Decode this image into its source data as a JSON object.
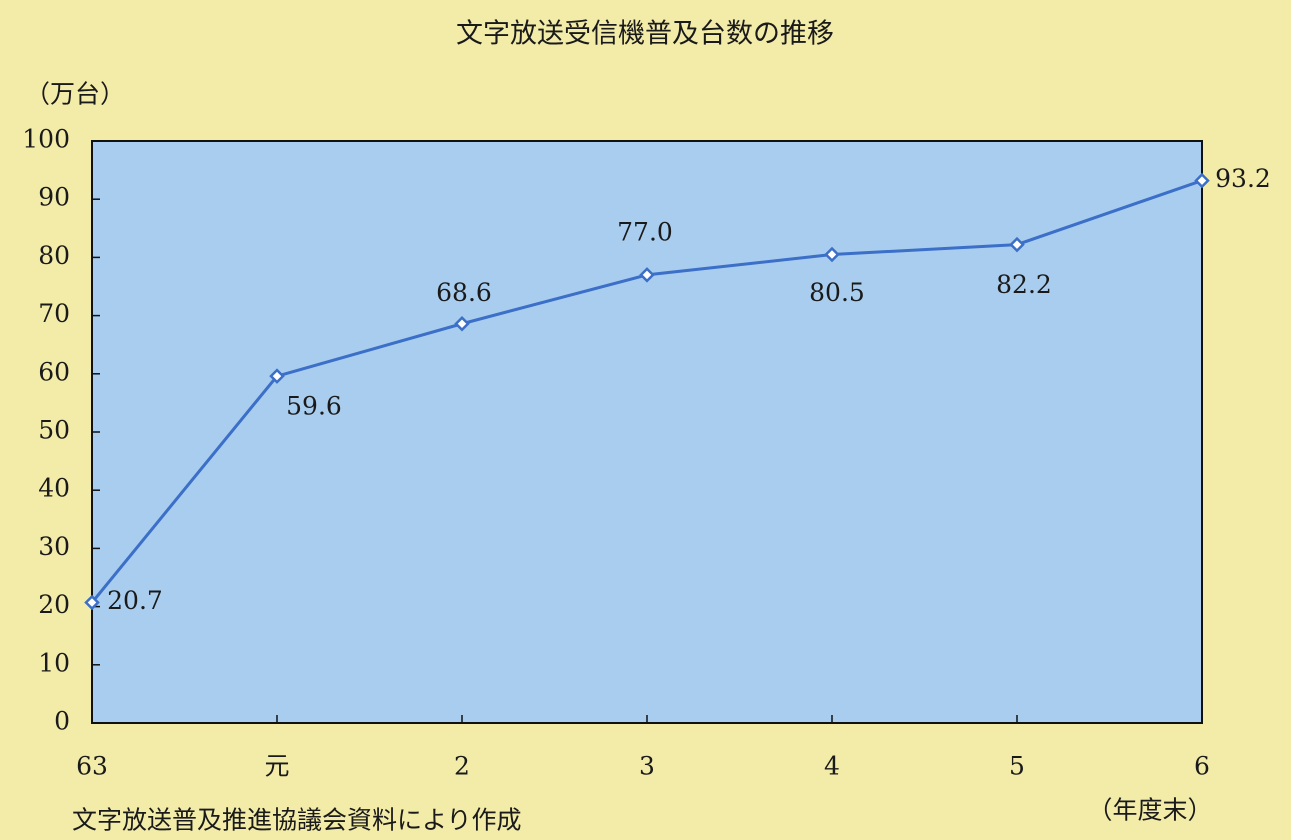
{
  "chart_data": {
    "type": "line",
    "title": "文字放送受信機普及台数の推移",
    "y_label": "（万台）",
    "x_label": "（年度末）",
    "source": "文字放送普及推進協議会資料により作成",
    "categories": [
      "63",
      "元",
      "2",
      "3",
      "4",
      "5",
      "6"
    ],
    "values": [
      20.7,
      59.6,
      68.6,
      77.0,
      80.5,
      82.2,
      93.2
    ],
    "value_labels": [
      "20.7",
      "59.6",
      "68.6",
      "77.0",
      "80.5",
      "82.2",
      "93.2"
    ],
    "color": "#3b6fc8",
    "ylim": [
      0,
      100
    ],
    "yticks": [
      0,
      10,
      20,
      30,
      40,
      50,
      60,
      70,
      80,
      90,
      100
    ]
  }
}
